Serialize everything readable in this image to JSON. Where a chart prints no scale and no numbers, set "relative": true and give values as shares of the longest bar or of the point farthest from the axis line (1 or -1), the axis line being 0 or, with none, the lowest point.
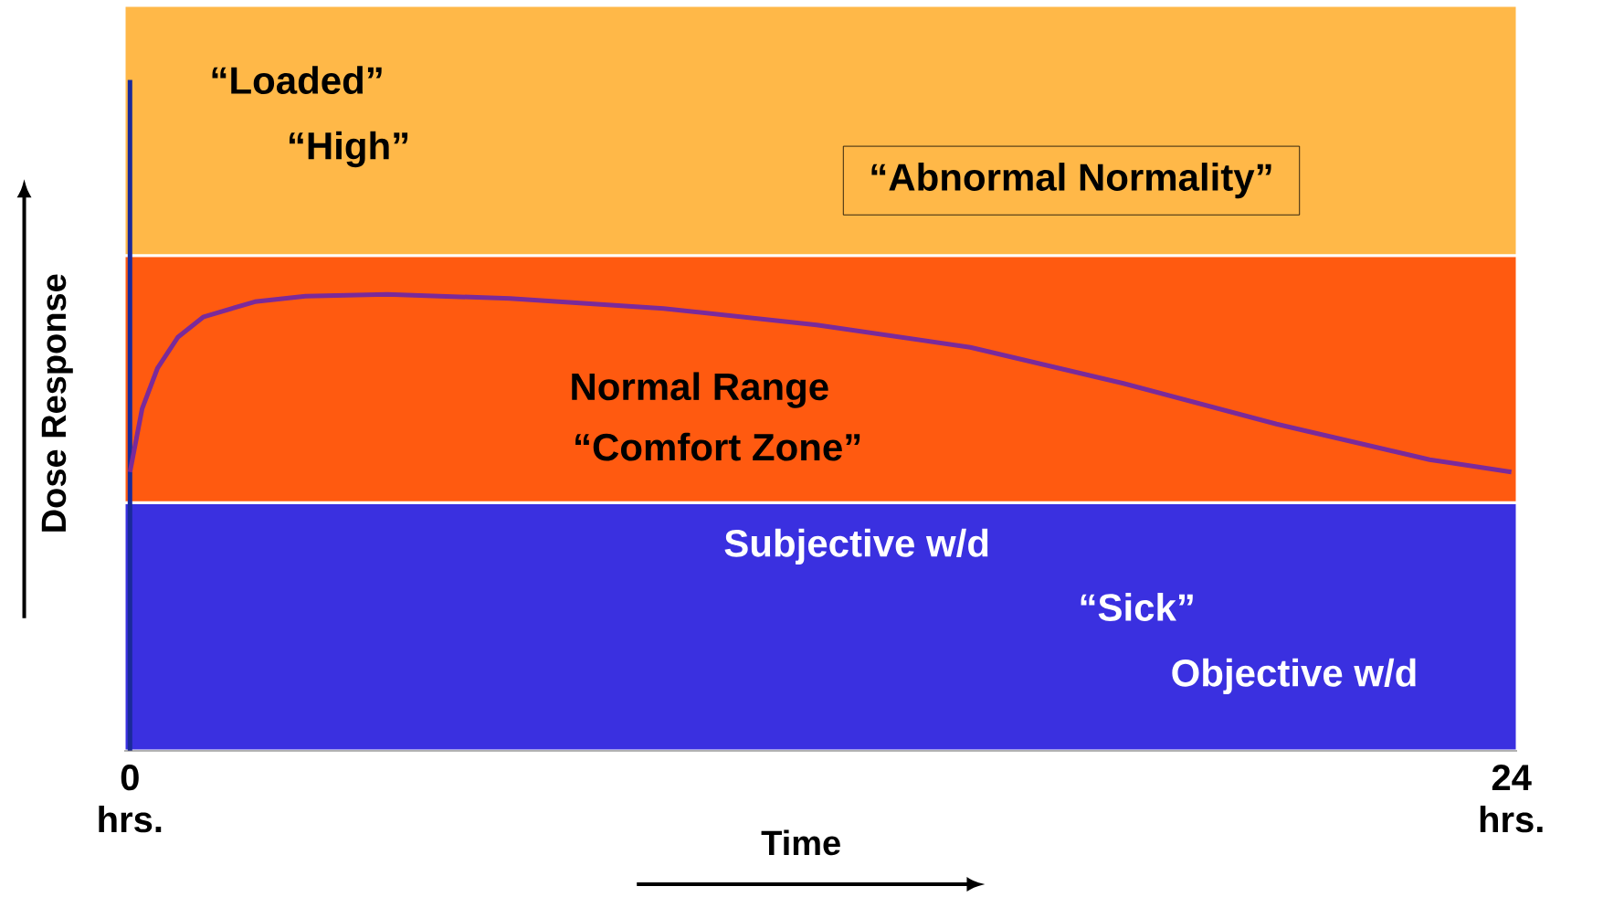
{
  "chart_data": {
    "type": "line",
    "relative": true,
    "xlabel": "Time",
    "ylabel": "Dose Response",
    "xlim": [
      -0.1,
      24.1
    ],
    "xticks": [
      {
        "value": 0,
        "label": "0 hrs."
      },
      {
        "value": 24,
        "label": "24 hrs."
      }
    ],
    "series": [
      {
        "color": "#7a2a9a",
        "x": [
          0,
          0.21,
          0.48,
          0.83,
          1.28,
          2.17,
          3.05,
          4.47,
          6.6,
          9.27,
          11.93,
          14.6,
          17.26,
          19.92,
          22.58,
          24
        ],
        "values": [
          0.611,
          0.749,
          0.839,
          0.906,
          0.951,
          0.984,
          0.996,
          1.0,
          0.991,
          0.969,
          0.933,
          0.884,
          0.805,
          0.716,
          0.638,
          0.611
        ]
      }
    ],
    "bands": [
      {
        "axis": "y",
        "from": 0,
        "to": 0.544,
        "color": "#3a30e0"
      },
      {
        "axis": "y",
        "from": 0.544,
        "to": 1.085,
        "color": "#ff5a10"
      },
      {
        "axis": "y",
        "from": 1.085,
        "to": 1.633,
        "color": "#ffb848",
        "label": "“Abnormal Normality”"
      }
    ],
    "ref_lines": [
      {
        "axis": "x",
        "value": 0,
        "color": "#1a2a9a"
      }
    ],
    "annotations": [
      "“Loaded”",
      "“High”",
      "Normal Range",
      "“Comfort Zone”",
      "Subjective w/d",
      "“Sick”",
      "Objective w/d"
    ]
  }
}
